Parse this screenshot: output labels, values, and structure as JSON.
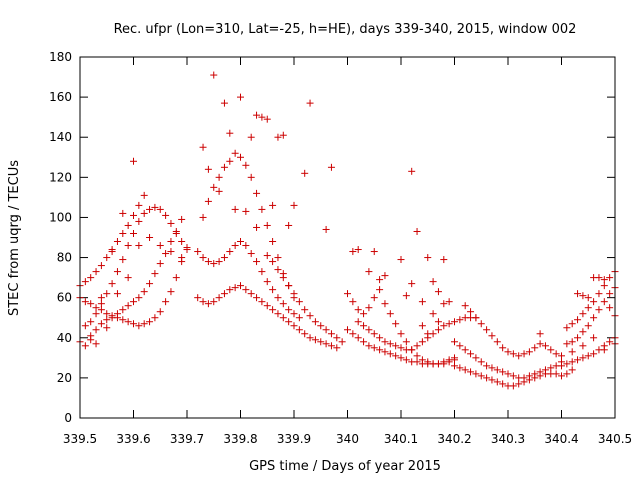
{
  "chart_data": {
    "type": "scatter",
    "title": "Rec. ufpr (Lon=310, Lat=-25, h=HE), days 339-340, 2015, window 002",
    "xlabel": "GPS time / Days of year 2015",
    "ylabel": "STEC from uqrg / TECUs",
    "xlim": [
      339.5,
      340.5
    ],
    "ylim": [
      0,
      180
    ],
    "xticks": [
      "339.5",
      "339.6",
      "339.7",
      "339.8",
      "339.9",
      "340",
      "340.1",
      "340.2",
      "340.3",
      "340.4",
      "340.5"
    ],
    "yticks": [
      "0",
      "20",
      "40",
      "60",
      "80",
      "100",
      "120",
      "140",
      "160",
      "180"
    ],
    "grid": false,
    "legend": "none",
    "marker": "plus",
    "color": "#cc0000",
    "points": [
      [
        339.5,
        38
      ],
      [
        339.51,
        36
      ],
      [
        339.52,
        41
      ],
      [
        339.53,
        44
      ],
      [
        339.54,
        47
      ],
      [
        339.55,
        49
      ],
      [
        339.56,
        50
      ],
      [
        339.57,
        52
      ],
      [
        339.58,
        54
      ],
      [
        339.59,
        56
      ],
      [
        339.6,
        58
      ],
      [
        339.61,
        60
      ],
      [
        339.62,
        63
      ],
      [
        339.63,
        67
      ],
      [
        339.64,
        72
      ],
      [
        339.65,
        77
      ],
      [
        339.66,
        82
      ],
      [
        339.67,
        88
      ],
      [
        339.68,
        93
      ],
      [
        339.69,
        99
      ],
      [
        339.5,
        60
      ],
      [
        339.51,
        58
      ],
      [
        339.52,
        57
      ],
      [
        339.53,
        55
      ],
      [
        339.54,
        54
      ],
      [
        339.55,
        52
      ],
      [
        339.56,
        51
      ],
      [
        339.57,
        50
      ],
      [
        339.58,
        49
      ],
      [
        339.59,
        48
      ],
      [
        339.6,
        47
      ],
      [
        339.61,
        46
      ],
      [
        339.62,
        47
      ],
      [
        339.63,
        48
      ],
      [
        339.64,
        50
      ],
      [
        339.65,
        53
      ],
      [
        339.66,
        58
      ],
      [
        339.67,
        63
      ],
      [
        339.68,
        70
      ],
      [
        339.69,
        78
      ],
      [
        339.7,
        85
      ],
      [
        339.51,
        46
      ],
      [
        339.52,
        48
      ],
      [
        339.53,
        52
      ],
      [
        339.54,
        57
      ],
      [
        339.55,
        62
      ],
      [
        339.56,
        67
      ],
      [
        339.57,
        73
      ],
      [
        339.58,
        79
      ],
      [
        339.59,
        86
      ],
      [
        339.6,
        92
      ],
      [
        339.61,
        98
      ],
      [
        339.62,
        102
      ],
      [
        339.63,
        104
      ],
      [
        339.64,
        105
      ],
      [
        339.65,
        104
      ],
      [
        339.66,
        101
      ],
      [
        339.67,
        97
      ],
      [
        339.68,
        92
      ],
      [
        339.69,
        88
      ],
      [
        339.7,
        84
      ],
      [
        339.5,
        66
      ],
      [
        339.51,
        68
      ],
      [
        339.52,
        70
      ],
      [
        339.53,
        73
      ],
      [
        339.54,
        76
      ],
      [
        339.55,
        80
      ],
      [
        339.56,
        84
      ],
      [
        339.57,
        88
      ],
      [
        339.58,
        92
      ],
      [
        339.59,
        96
      ],
      [
        339.6,
        101
      ],
      [
        339.61,
        106
      ],
      [
        339.62,
        111
      ],
      [
        339.6,
        128
      ],
      [
        339.58,
        102
      ],
      [
        339.56,
        83
      ],
      [
        339.54,
        60
      ],
      [
        339.52,
        39
      ],
      [
        339.53,
        37
      ],
      [
        339.55,
        45
      ],
      [
        339.57,
        62
      ],
      [
        339.59,
        70
      ],
      [
        339.61,
        86
      ],
      [
        339.63,
        90
      ],
      [
        339.65,
        86
      ],
      [
        339.67,
        83
      ],
      [
        339.69,
        80
      ],
      [
        339.72,
        60
      ],
      [
        339.73,
        58
      ],
      [
        339.74,
        57
      ],
      [
        339.75,
        58
      ],
      [
        339.76,
        60
      ],
      [
        339.77,
        62
      ],
      [
        339.78,
        64
      ],
      [
        339.79,
        65
      ],
      [
        339.8,
        66
      ],
      [
        339.81,
        64
      ],
      [
        339.82,
        62
      ],
      [
        339.83,
        60
      ],
      [
        339.84,
        58
      ],
      [
        339.85,
        56
      ],
      [
        339.86,
        54
      ],
      [
        339.87,
        52
      ],
      [
        339.88,
        50
      ],
      [
        339.89,
        48
      ],
      [
        339.9,
        46
      ],
      [
        339.91,
        44
      ],
      [
        339.92,
        42
      ],
      [
        339.93,
        40
      ],
      [
        339.94,
        39
      ],
      [
        339.95,
        38
      ],
      [
        339.96,
        37
      ],
      [
        339.97,
        36
      ],
      [
        339.98,
        35
      ],
      [
        339.72,
        83
      ],
      [
        339.73,
        80
      ],
      [
        339.74,
        78
      ],
      [
        339.75,
        77
      ],
      [
        339.76,
        78
      ],
      [
        339.77,
        80
      ],
      [
        339.78,
        83
      ],
      [
        339.79,
        86
      ],
      [
        339.8,
        88
      ],
      [
        339.81,
        86
      ],
      [
        339.82,
        82
      ],
      [
        339.83,
        78
      ],
      [
        339.84,
        73
      ],
      [
        339.85,
        68
      ],
      [
        339.86,
        64
      ],
      [
        339.87,
        60
      ],
      [
        339.88,
        57
      ],
      [
        339.89,
        54
      ],
      [
        339.9,
        52
      ],
      [
        339.91,
        50
      ],
      [
        339.73,
        100
      ],
      [
        339.74,
        108
      ],
      [
        339.75,
        115
      ],
      [
        339.76,
        120
      ],
      [
        339.77,
        125
      ],
      [
        339.78,
        128
      ],
      [
        339.79,
        132
      ],
      [
        339.8,
        130
      ],
      [
        339.81,
        126
      ],
      [
        339.82,
        120
      ],
      [
        339.83,
        112
      ],
      [
        339.84,
        104
      ],
      [
        339.85,
        96
      ],
      [
        339.86,
        88
      ],
      [
        339.87,
        80
      ],
      [
        339.88,
        72
      ],
      [
        339.89,
        66
      ],
      [
        339.9,
        60
      ],
      [
        339.75,
        171
      ],
      [
        339.77,
        157
      ],
      [
        339.78,
        142
      ],
      [
        339.8,
        160
      ],
      [
        339.82,
        140
      ],
      [
        339.83,
        151
      ],
      [
        339.84,
        150
      ],
      [
        339.85,
        149
      ],
      [
        339.87,
        140
      ],
      [
        339.88,
        141
      ],
      [
        339.93,
        157
      ],
      [
        339.97,
        125
      ],
      [
        339.73,
        135
      ],
      [
        339.74,
        124
      ],
      [
        339.76,
        113
      ],
      [
        339.79,
        104
      ],
      [
        339.81,
        103
      ],
      [
        339.83,
        95
      ],
      [
        339.86,
        106
      ],
      [
        339.89,
        96
      ],
      [
        339.9,
        106
      ],
      [
        339.92,
        122
      ],
      [
        339.96,
        94
      ],
      [
        339.85,
        81
      ],
      [
        339.86,
        78
      ],
      [
        339.87,
        74
      ],
      [
        339.88,
        70
      ],
      [
        339.89,
        66
      ],
      [
        339.9,
        62
      ],
      [
        339.91,
        58
      ],
      [
        339.92,
        54
      ],
      [
        339.93,
        51
      ],
      [
        339.94,
        48
      ],
      [
        339.95,
        46
      ],
      [
        339.96,
        44
      ],
      [
        339.97,
        42
      ],
      [
        339.98,
        40
      ],
      [
        339.99,
        38
      ],
      [
        340.0,
        62
      ],
      [
        340.01,
        58
      ],
      [
        340.02,
        54
      ],
      [
        340.03,
        52
      ],
      [
        340.04,
        55
      ],
      [
        340.05,
        60
      ],
      [
        340.06,
        64
      ],
      [
        340.07,
        57
      ],
      [
        340.08,
        52
      ],
      [
        340.09,
        47
      ],
      [
        340.1,
        42
      ],
      [
        340.11,
        38
      ],
      [
        340.12,
        34
      ],
      [
        340.13,
        31
      ],
      [
        340.14,
        29
      ],
      [
        340.15,
        28
      ],
      [
        340.16,
        27
      ],
      [
        340.17,
        27
      ],
      [
        340.18,
        27
      ],
      [
        340.19,
        28
      ],
      [
        340.2,
        29
      ],
      [
        340.0,
        44
      ],
      [
        340.01,
        42
      ],
      [
        340.02,
        40
      ],
      [
        340.03,
        38
      ],
      [
        340.04,
        36
      ],
      [
        340.05,
        35
      ],
      [
        340.06,
        34
      ],
      [
        340.07,
        33
      ],
      [
        340.08,
        32
      ],
      [
        340.09,
        31
      ],
      [
        340.1,
        30
      ],
      [
        340.11,
        29
      ],
      [
        340.12,
        28
      ],
      [
        340.13,
        28
      ],
      [
        340.14,
        27
      ],
      [
        340.15,
        27
      ],
      [
        340.16,
        27
      ],
      [
        340.17,
        27
      ],
      [
        340.18,
        28
      ],
      [
        340.19,
        29
      ],
      [
        340.2,
        30
      ],
      [
        340.01,
        83
      ],
      [
        340.02,
        84
      ],
      [
        340.05,
        83
      ],
      [
        340.04,
        73
      ],
      [
        340.06,
        69
      ],
      [
        340.07,
        71
      ],
      [
        340.1,
        79
      ],
      [
        340.12,
        123
      ],
      [
        340.13,
        93
      ],
      [
        340.15,
        80
      ],
      [
        340.18,
        79
      ],
      [
        340.11,
        61
      ],
      [
        340.12,
        67
      ],
      [
        340.14,
        58
      ],
      [
        340.16,
        68
      ],
      [
        340.17,
        63
      ],
      [
        340.18,
        57
      ],
      [
        340.19,
        58
      ],
      [
        340.16,
        52
      ],
      [
        340.17,
        48
      ],
      [
        340.14,
        46
      ],
      [
        340.15,
        42
      ],
      [
        340.02,
        48
      ],
      [
        340.03,
        46
      ],
      [
        340.04,
        44
      ],
      [
        340.05,
        42
      ],
      [
        340.06,
        40
      ],
      [
        340.07,
        38
      ],
      [
        340.08,
        37
      ],
      [
        340.09,
        36
      ],
      [
        340.1,
        35
      ],
      [
        340.11,
        34
      ],
      [
        340.12,
        34
      ],
      [
        340.13,
        36
      ],
      [
        340.14,
        38
      ],
      [
        340.15,
        40
      ],
      [
        340.16,
        42
      ],
      [
        340.17,
        44
      ],
      [
        340.18,
        46
      ],
      [
        340.19,
        47
      ],
      [
        340.2,
        48
      ],
      [
        340.21,
        49
      ],
      [
        340.22,
        50
      ],
      [
        340.23,
        50
      ],
      [
        340.24,
        50
      ],
      [
        340.2,
        38
      ],
      [
        340.21,
        36
      ],
      [
        340.22,
        34
      ],
      [
        340.23,
        32
      ],
      [
        340.24,
        30
      ],
      [
        340.25,
        28
      ],
      [
        340.26,
        26
      ],
      [
        340.27,
        25
      ],
      [
        340.28,
        24
      ],
      [
        340.29,
        23
      ],
      [
        340.3,
        22
      ],
      [
        340.31,
        21
      ],
      [
        340.32,
        20
      ],
      [
        340.33,
        20
      ],
      [
        340.34,
        21
      ],
      [
        340.35,
        22
      ],
      [
        340.36,
        23
      ],
      [
        340.37,
        24
      ],
      [
        340.38,
        25
      ],
      [
        340.39,
        26
      ],
      [
        340.4,
        28
      ],
      [
        340.2,
        26
      ],
      [
        340.21,
        25
      ],
      [
        340.22,
        24
      ],
      [
        340.23,
        23
      ],
      [
        340.24,
        22
      ],
      [
        340.25,
        21
      ],
      [
        340.26,
        20
      ],
      [
        340.27,
        19
      ],
      [
        340.28,
        18
      ],
      [
        340.29,
        17
      ],
      [
        340.3,
        16
      ],
      [
        340.31,
        16
      ],
      [
        340.32,
        17
      ],
      [
        340.33,
        18
      ],
      [
        340.34,
        19
      ],
      [
        340.35,
        20
      ],
      [
        340.36,
        21
      ],
      [
        340.37,
        22
      ],
      [
        340.38,
        22
      ],
      [
        340.39,
        22
      ],
      [
        340.4,
        21
      ],
      [
        340.41,
        22
      ],
      [
        340.42,
        24
      ],
      [
        340.22,
        56
      ],
      [
        340.23,
        53
      ],
      [
        340.24,
        50
      ],
      [
        340.25,
        47
      ],
      [
        340.26,
        44
      ],
      [
        340.27,
        41
      ],
      [
        340.28,
        38
      ],
      [
        340.29,
        35
      ],
      [
        340.3,
        33
      ],
      [
        340.31,
        32
      ],
      [
        340.32,
        31
      ],
      [
        340.33,
        32
      ],
      [
        340.34,
        33
      ],
      [
        340.35,
        35
      ],
      [
        340.36,
        37
      ],
      [
        340.37,
        36
      ],
      [
        340.38,
        34
      ],
      [
        340.39,
        32
      ],
      [
        340.4,
        31
      ],
      [
        340.36,
        42
      ],
      [
        340.41,
        45
      ],
      [
        340.42,
        47
      ],
      [
        340.43,
        49
      ],
      [
        340.44,
        52
      ],
      [
        340.45,
        55
      ],
      [
        340.46,
        58
      ],
      [
        340.47,
        62
      ],
      [
        340.48,
        66
      ],
      [
        340.49,
        70
      ],
      [
        340.5,
        73
      ],
      [
        340.4,
        26
      ],
      [
        340.41,
        27
      ],
      [
        340.42,
        28
      ],
      [
        340.43,
        29
      ],
      [
        340.44,
        30
      ],
      [
        340.45,
        31
      ],
      [
        340.46,
        32
      ],
      [
        340.47,
        34
      ],
      [
        340.48,
        36
      ],
      [
        340.49,
        38
      ],
      [
        340.5,
        40
      ],
      [
        340.42,
        38
      ],
      [
        340.43,
        40
      ],
      [
        340.44,
        43
      ],
      [
        340.45,
        46
      ],
      [
        340.46,
        50
      ],
      [
        340.47,
        54
      ],
      [
        340.48,
        58
      ],
      [
        340.49,
        62
      ],
      [
        340.5,
        65
      ],
      [
        340.43,
        62
      ],
      [
        340.44,
        61
      ],
      [
        340.45,
        60
      ],
      [
        340.46,
        70
      ],
      [
        340.47,
        70
      ],
      [
        340.48,
        69
      ],
      [
        340.49,
        55
      ],
      [
        340.5,
        51
      ],
      [
        340.41,
        37
      ],
      [
        340.42,
        33
      ],
      [
        340.44,
        36
      ],
      [
        340.46,
        40
      ],
      [
        340.48,
        34
      ],
      [
        340.5,
        37
      ]
    ]
  }
}
